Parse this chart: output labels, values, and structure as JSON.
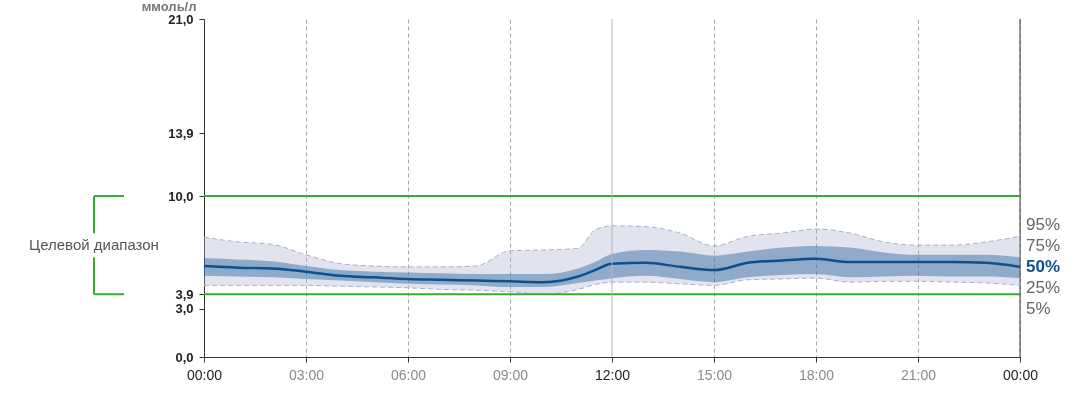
{
  "chart_data": {
    "type": "line",
    "x": [
      0,
      1,
      2,
      3,
      4,
      5,
      6,
      7,
      8,
      9,
      10,
      11,
      11.5,
      12,
      13,
      14,
      15,
      16,
      17,
      18,
      19,
      20,
      21,
      22,
      23,
      24
    ],
    "series": [
      {
        "name": "95%",
        "line_style": "dashed",
        "color": "#a8b2cf",
        "values": [
          7.45,
          7.15,
          7.0,
          6.35,
          5.8,
          5.65,
          5.6,
          5.6,
          5.65,
          6.6,
          6.65,
          6.75,
          7.9,
          8.15,
          8.1,
          7.7,
          6.9,
          7.5,
          7.7,
          7.95,
          7.7,
          7.15,
          6.95,
          6.95,
          7.15,
          7.5
        ],
        "lower": [
          4.45,
          4.45,
          4.45,
          4.45,
          4.4,
          4.35,
          4.3,
          4.2,
          4.15,
          4.05,
          3.9,
          4.2,
          4.5,
          4.65,
          4.65,
          4.55,
          4.45,
          4.8,
          4.85,
          4.9,
          4.65,
          4.7,
          4.7,
          4.65,
          4.6,
          4.45
        ],
        "upper": [
          7.45,
          7.15,
          7.0,
          6.35,
          5.8,
          5.65,
          5.6,
          5.6,
          5.65,
          6.6,
          6.65,
          6.75,
          7.9,
          8.15,
          8.1,
          7.7,
          6.9,
          7.5,
          7.7,
          7.95,
          7.7,
          7.15,
          6.95,
          6.95,
          7.15,
          7.5
        ]
      },
      {
        "name": "5%",
        "line_style": "dashed",
        "color": "#a8b2cf",
        "values": [
          4.45,
          4.45,
          4.45,
          4.45,
          4.4,
          4.35,
          4.3,
          4.2,
          4.15,
          4.05,
          3.9,
          4.2,
          4.5,
          4.65,
          4.65,
          4.55,
          4.45,
          4.8,
          4.85,
          4.9,
          4.65,
          4.7,
          4.7,
          4.65,
          4.6,
          4.45
        ]
      },
      {
        "name": "50%",
        "line_style": "solid",
        "color": "#0d5090",
        "values": [
          5.65,
          5.55,
          5.5,
          5.3,
          5.05,
          4.95,
          4.85,
          4.8,
          4.75,
          4.7,
          4.65,
          5.0,
          5.4,
          5.8,
          5.85,
          5.6,
          5.4,
          5.85,
          6.0,
          6.1,
          5.9,
          5.9,
          5.9,
          5.9,
          5.85,
          5.6
        ],
        "lower": [
          5.05,
          5.0,
          4.95,
          4.85,
          4.75,
          4.65,
          4.55,
          4.5,
          4.45,
          4.35,
          4.35,
          4.6,
          4.75,
          4.9,
          5.05,
          4.85,
          4.65,
          4.95,
          5.1,
          5.15,
          4.95,
          5.0,
          5.05,
          5.0,
          5.0,
          4.9
        ],
        "upper": [
          6.15,
          6.05,
          5.95,
          5.65,
          5.4,
          5.3,
          5.25,
          5.2,
          5.15,
          5.15,
          5.15,
          5.5,
          5.9,
          6.4,
          6.65,
          6.55,
          6.3,
          6.55,
          6.8,
          6.9,
          6.8,
          6.5,
          6.35,
          6.35,
          6.35,
          6.2
        ]
      }
    ],
    "annotations": [
      "75%",
      "25%",
      "Целевой диапазон"
    ],
    "ylabel": "ммоль/л",
    "xlim": [
      0,
      24
    ],
    "xticks": [
      {
        "value": 0,
        "label": "00:00"
      },
      {
        "value": 3,
        "label": "03:00"
      },
      {
        "value": 6,
        "label": "06:00"
      },
      {
        "value": 9,
        "label": "09:00"
      },
      {
        "value": 12,
        "label": "12:00"
      },
      {
        "value": 15,
        "label": "15:00"
      },
      {
        "value": 18,
        "label": "18:00"
      },
      {
        "value": 21,
        "label": "21:00"
      },
      {
        "value": 24,
        "label": "00:00"
      }
    ],
    "ylim": [
      0,
      21
    ],
    "yticks": [
      {
        "value": 0,
        "label": "0,0"
      },
      {
        "value": 3,
        "label": "3,0"
      },
      {
        "value": 3.9,
        "label": "3,9"
      },
      {
        "value": 10,
        "label": "10,0"
      },
      {
        "value": 13.9,
        "label": "13,9"
      },
      {
        "value": 21,
        "label": "21,0"
      }
    ],
    "ref_lines": [
      {
        "axis": "y",
        "value": 3.9,
        "color": "#3aaa35"
      },
      {
        "axis": "y",
        "value": 10,
        "color": "#3aaa35"
      },
      {
        "axis": "x",
        "value": 12,
        "color": "#b5b5b5",
        "line_style": "solid"
      }
    ],
    "grid": "x"
  }
}
